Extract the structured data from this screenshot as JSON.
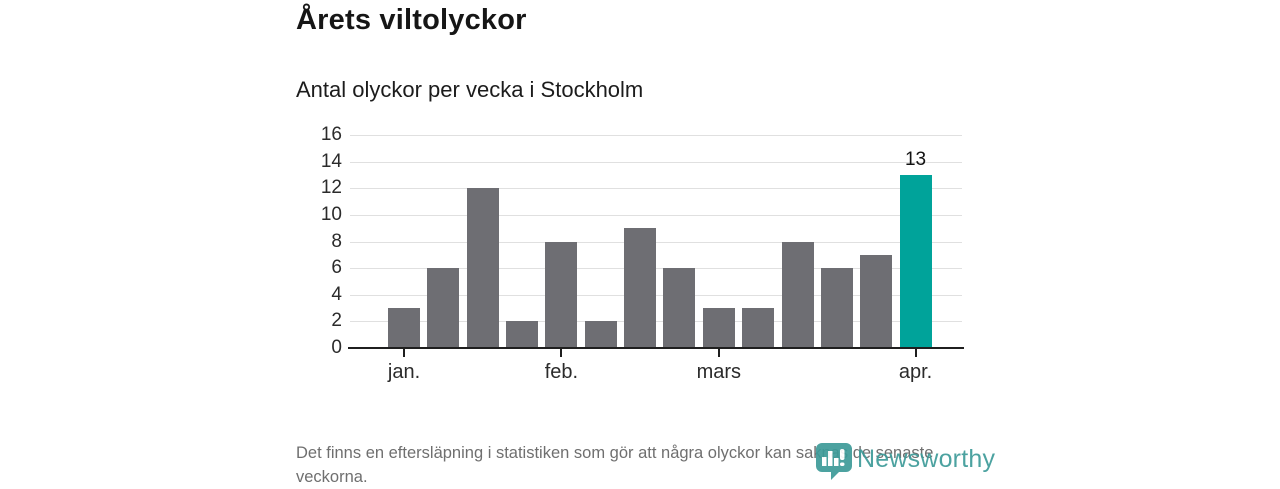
{
  "page": {
    "title": "Årets viltolyckor",
    "subtitle": "Antal olyckor per vecka i Stockholm",
    "footnote": "Det finns en eftersläpning i statistiken som gör att några olyckor kan saknas de senaste veckorna.",
    "brand": {
      "name": "Newsworthy",
      "icon": "newsworthy-bubble-barchart-icon",
      "color": "#3d9b99"
    }
  },
  "chart_data": {
    "type": "bar",
    "title": "Årets viltolyckor",
    "subtitle": "Antal olyckor per vecka i Stockholm",
    "x_unit": "vecka",
    "values": [
      3,
      6,
      12,
      2,
      8,
      2,
      9,
      6,
      3,
      3,
      8,
      6,
      7,
      13
    ],
    "highlight_index": 13,
    "highlight_label": "13",
    "bar_color": "#6e6e73",
    "highlight_color": "#00a39a",
    "ylim": [
      0,
      16
    ],
    "yticks": [
      0,
      2,
      4,
      6,
      8,
      10,
      12,
      14,
      16
    ],
    "xticks": [
      {
        "index": 0,
        "label": "jan."
      },
      {
        "index": 4,
        "label": "feb."
      },
      {
        "index": 8,
        "label": "mars"
      },
      {
        "index": 13,
        "label": "apr."
      }
    ],
    "grid": "horizontal",
    "legend": "none",
    "axis_color": "#1f1f1f",
    "gridline_color": "#e0e0e0"
  }
}
